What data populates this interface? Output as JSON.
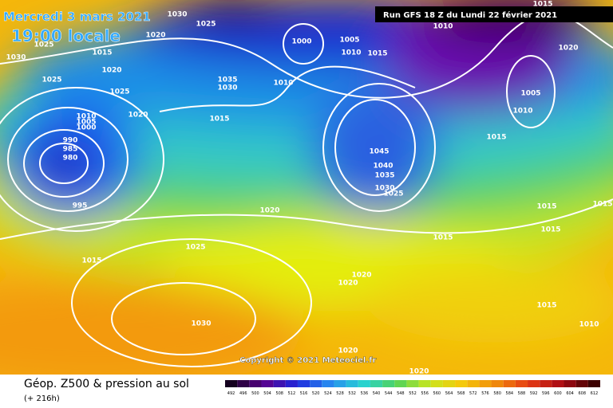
{
  "header": {
    "date": "Mercredi 3 mars 2021",
    "time": "19:00 locale",
    "run": "Run GFS 18 Z du Lundi 22 février 2021"
  },
  "copyright": "Copyright © 2021 Meteociel.fr",
  "legend": {
    "title": "Géop. Z500 & pression au sol",
    "lead": "(+ 216h)",
    "scale": [
      492,
      496,
      500,
      504,
      508,
      512,
      516,
      520,
      524,
      528,
      532,
      536,
      540,
      544,
      548,
      552,
      556,
      560,
      564,
      568,
      572,
      576,
      580,
      584,
      588,
      592,
      596,
      600,
      604,
      608,
      612
    ]
  },
  "isobar_labels": [
    1030,
    1025,
    1020,
    1025,
    1015,
    1030,
    1020,
    1025,
    1025,
    1020,
    1010,
    1005,
    1000,
    990,
    985,
    980,
    995,
    1015,
    1025,
    1030,
    1035,
    1030,
    1015,
    1010,
    1000,
    1005,
    1010,
    1015,
    1010,
    1015,
    1020,
    1005,
    1010,
    1015,
    1045,
    1040,
    1035,
    1030,
    1025,
    1020,
    1015,
    1015,
    1015,
    1015,
    1010,
    1020,
    1020,
    1020,
    1020,
    1015
  ]
}
